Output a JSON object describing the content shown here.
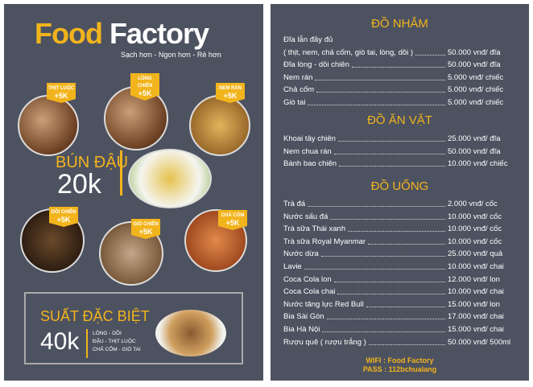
{
  "brand": {
    "word1": "Food",
    "word2": "Factory",
    "tagline": "Sạch hơn - Ngon hơn - Rẻ hơn"
  },
  "addons": [
    {
      "name": "THỊT LUỘC",
      "price": "+5K"
    },
    {
      "name": "LÒNG CHIÊN",
      "price": "+5K"
    },
    {
      "name": "NEM RÁN",
      "price": "+5K"
    },
    {
      "name": "DỒI CHIÊN",
      "price": "+5K"
    },
    {
      "name": "GIÒ CHIÊN",
      "price": "+5K"
    },
    {
      "name": "CHẢ CỐM",
      "price": "+5K"
    }
  ],
  "main": {
    "name": "BÚN ĐẬU",
    "price": "20k"
  },
  "special": {
    "title": "SUẤT ĐẶC BIỆT",
    "price": "40k",
    "items": [
      "LÒNG - DỒI",
      "ĐẬU - THỊT LUỘC",
      "CHẢ CỐM - GIÒ TAI"
    ]
  },
  "sections": [
    {
      "title": "ĐỒ NHẮM",
      "items": [
        {
          "name": "Đĩa lẫn đầy đủ"
        },
        {
          "name": "( thịt, nem, chả cốm, giò tai, lòng, dồi )",
          "price": "50.000 vnđ/ đĩa"
        },
        {
          "name": "Đĩa lòng - dồi chiên",
          "price": "50.000 vnđ/ đĩa"
        },
        {
          "name": "Nem rán",
          "price": "5.000 vnđ/ chiếc"
        },
        {
          "name": "Chả cốm",
          "price": "5.000 vnđ/ chiếc"
        },
        {
          "name": "Giò tai",
          "price": "5.000 vnđ/ chiếc"
        }
      ]
    },
    {
      "title": "ĐỒ ĂN VẶT",
      "items": [
        {
          "name": "Khoai tây chiên",
          "price": "25.000 vnđ/ đĩa"
        },
        {
          "name": "Nem chua rán",
          "price": "50.000 vnđ/ đĩa"
        },
        {
          "name": "Bánh bao chiên",
          "price": "10.000 vnđ/ chiếc"
        }
      ]
    },
    {
      "title": "ĐỒ UỐNG",
      "items": [
        {
          "name": "Trà đá",
          "price": "2.000 vnđ/ cốc"
        },
        {
          "name": "Nước sấu đá",
          "price": "10.000 vnđ/ cốc"
        },
        {
          "name": "Trà sữa Thái xanh",
          "price": "10.000 vnđ/ cốc"
        },
        {
          "name": "Trà sữa Royal Myanmar",
          "price": "10.000 vnđ/ cốc"
        },
        {
          "name": "Nước dừa",
          "price": "25.000 vnđ/ quả"
        },
        {
          "name": "Lavie",
          "price": "10.000 vnđ/ chai"
        },
        {
          "name": "Coca Cola lon",
          "price": "12.000 vnđ/ lon"
        },
        {
          "name": "Coca Cola chai",
          "price": "10.000 vnđ/ chai"
        },
        {
          "name": "Nước tăng lực Red Bull",
          "price": "15.000 vnđ/ lon"
        },
        {
          "name": "Bia Sài Gòn",
          "price": "17.000 vnđ/ chai"
        },
        {
          "name": "Bia Hà Nội",
          "price": "15.000 vnđ/ chai"
        },
        {
          "name": "Rượu quê ( rượu trắng )",
          "price": "50.000 vnđ/ 500ml"
        }
      ]
    }
  ],
  "footer": {
    "wifi": "WIFI : Food Factory",
    "pass": "PASS : 112bchualang"
  }
}
